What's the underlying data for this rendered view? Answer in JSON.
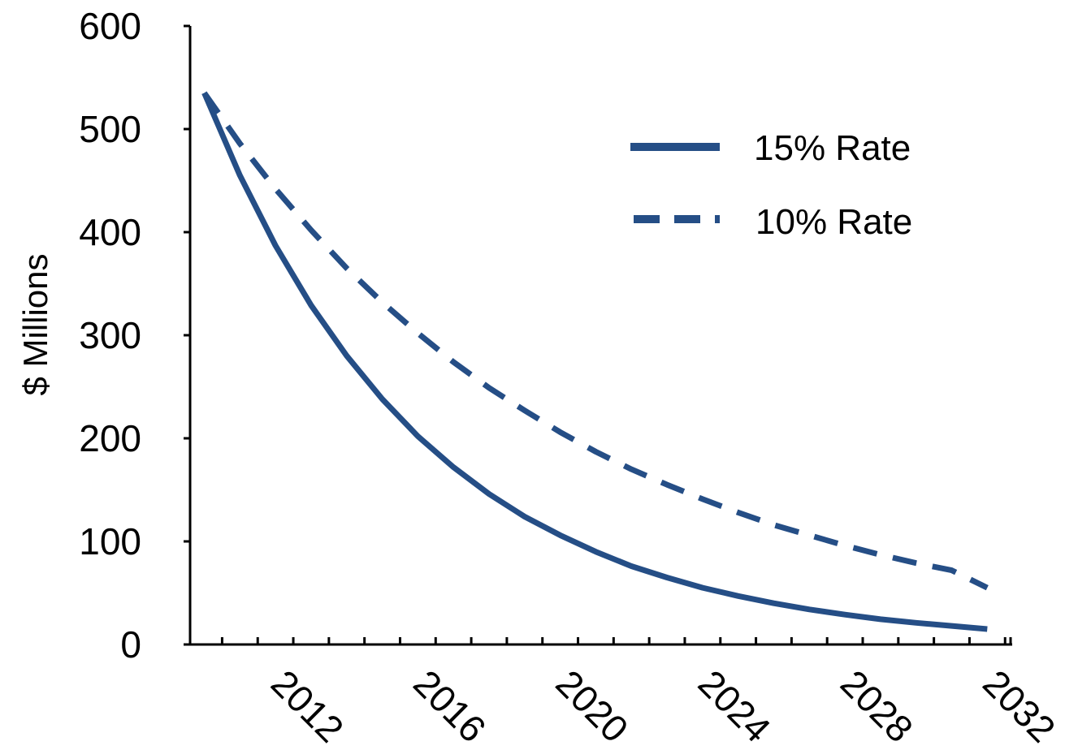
{
  "chart_data": {
    "type": "line",
    "ylabel": "$ Millions",
    "xlabel": "",
    "ylim": [
      0,
      600
    ],
    "yticks": [
      0,
      100,
      200,
      300,
      400,
      500,
      600
    ],
    "xlim": [
      2009.1,
      2032.2
    ],
    "xticks": [
      2012,
      2016,
      2020,
      2024,
      2028,
      2032
    ],
    "grid": false,
    "legend_position": "top-right",
    "x": [
      2009.5,
      2010.5,
      2011.5,
      2012.5,
      2013.5,
      2014.5,
      2015.5,
      2016.5,
      2017.5,
      2018.5,
      2019.5,
      2020.5,
      2021.5,
      2022.5,
      2023.5,
      2024.5,
      2025.5,
      2026.5,
      2027.5,
      2028.5,
      2029.5,
      2030.5,
      2031.5
    ],
    "series": [
      {
        "name": "15% Rate",
        "style": "solid",
        "color": "#254E86",
        "values": [
          535,
          455,
          387,
          329,
          280,
          238,
          202,
          172,
          146,
          124,
          106,
          90,
          76,
          65,
          55,
          47,
          40,
          34,
          29,
          24.5,
          21,
          18,
          15
        ]
      },
      {
        "name": "10% Rate",
        "style": "dashed",
        "color": "#254E86",
        "values": [
          535,
          486,
          442,
          402,
          365,
          332,
          302,
          274,
          249,
          227,
          206,
          187,
          170,
          155,
          141,
          128,
          116,
          106,
          96,
          87,
          79,
          72,
          55
        ]
      }
    ]
  }
}
